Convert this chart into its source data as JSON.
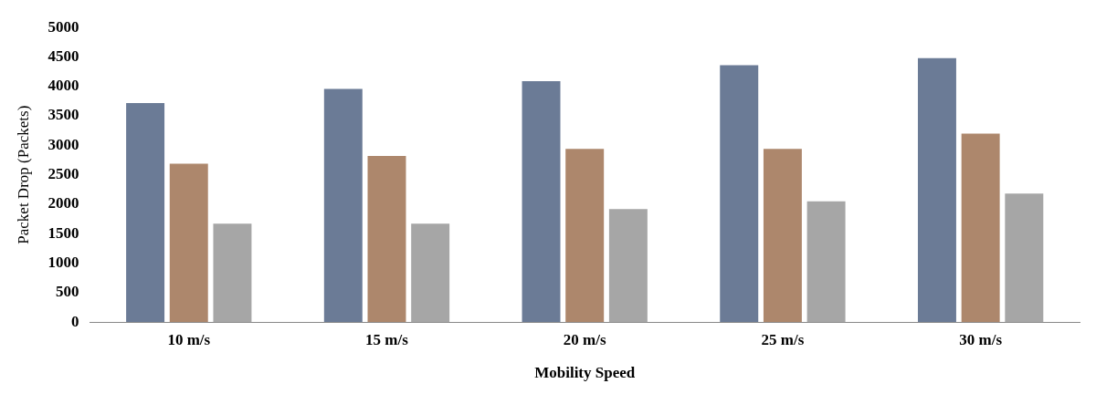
{
  "chart_data": {
    "type": "bar",
    "xlabel": "Mobility Speed",
    "ylabel": "Packet Drop (Packets)",
    "categories": [
      "10 m/s",
      "15 m/s",
      "20 m/s",
      "25 m/s",
      "30 m/s"
    ],
    "series": [
      {
        "color": "#6b7b96",
        "values": [
          3720,
          3960,
          4090,
          4360,
          4480
        ]
      },
      {
        "color": "#ad876c",
        "values": [
          2690,
          2820,
          2940,
          2940,
          3200
        ]
      },
      {
        "color": "#a6a6a6",
        "values": [
          1670,
          1670,
          1920,
          2050,
          2180
        ]
      }
    ],
    "ylim": [
      0,
      5000
    ],
    "yticks": [
      0,
      500,
      1000,
      1500,
      2000,
      2500,
      3000,
      3500,
      4000,
      4500,
      5000
    ],
    "grid": false,
    "legend": false
  }
}
